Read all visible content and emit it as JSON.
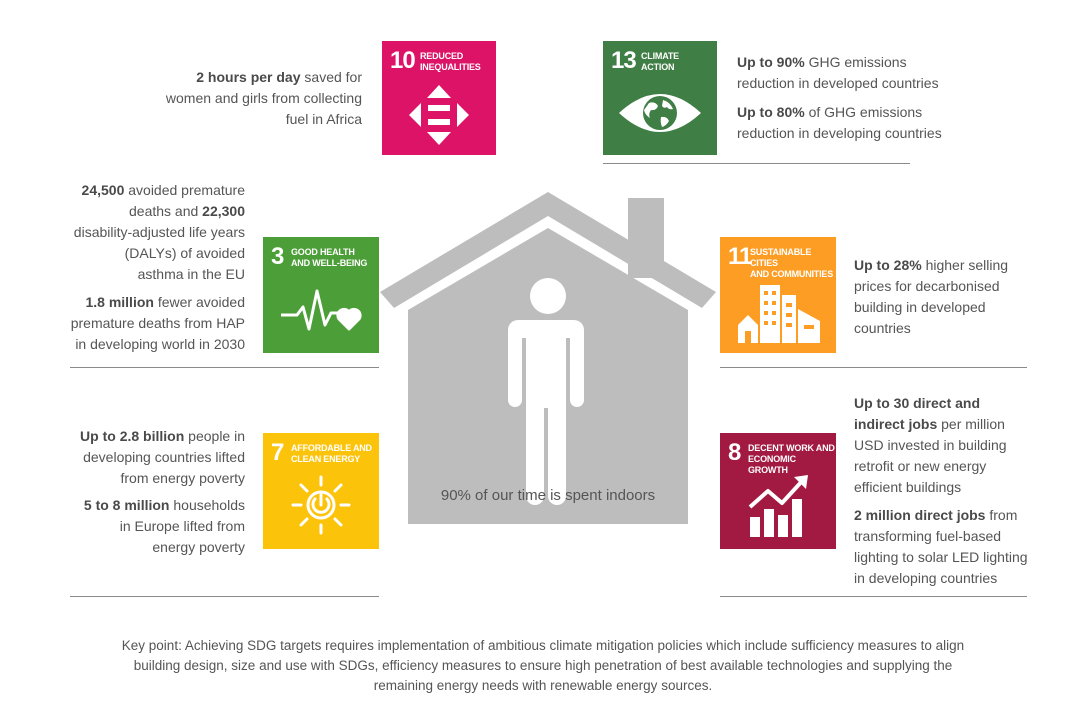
{
  "house": {
    "caption": "90% of our time is spent indoors"
  },
  "sdg10": {
    "number": "10",
    "label_lines": [
      "REDUCED",
      "INEQUALITIES"
    ],
    "color": "#dd1367",
    "icon": "inequality-arrows-icon",
    "facts": [
      {
        "bold": "2 hours per day",
        "rest_lines": [
          " saved for",
          "women and girls from collecting",
          "fuel in Africa"
        ]
      }
    ]
  },
  "sdg13": {
    "number": "13",
    "label_lines": [
      "CLIMATE",
      "ACTION"
    ],
    "color": "#3f7e44",
    "icon": "eye-globe-icon",
    "facts": [
      {
        "bold": "Up to 90%",
        "rest_lines": [
          " GHG emissions",
          "reduction in developed countries"
        ]
      },
      {
        "bold": "Up to 80%",
        "rest_lines": [
          " of GHG emissions",
          "reduction in developing countries"
        ]
      }
    ]
  },
  "sdg3": {
    "number": "3",
    "label_lines": [
      "GOOD HEALTH",
      "AND WELL-BEING"
    ],
    "color": "#4c9f38",
    "icon": "heartbeat-icon",
    "facts": [
      {
        "lines": [
          "24,500 avoided premature",
          "deaths and 22,300",
          "disability-adjusted life years",
          "(DALYs) of avoided",
          "asthma in the EU"
        ]
      },
      {
        "bold": "1.8 million",
        "rest_lines": [
          " fewer avoided",
          "premature deaths from HAP",
          "in developing world in 2030"
        ]
      }
    ]
  },
  "sdg11": {
    "number": "11",
    "label_lines": [
      "SUSTAINABLE CITIES",
      "AND COMMUNITIES"
    ],
    "color": "#fd9d24",
    "icon": "city-buildings-icon",
    "facts": [
      {
        "bold": "Up to 28%",
        "rest_lines": [
          " higher selling",
          "prices for decarbonised",
          "building in developed",
          "countries"
        ]
      }
    ]
  },
  "sdg7": {
    "number": "7",
    "label_lines": [
      "AFFORDABLE AND",
      "CLEAN ENERGY"
    ],
    "color": "#fcc30b",
    "icon": "sun-power-icon",
    "facts": [
      {
        "bold": "Up to 2.8 billion",
        "rest_lines": [
          " people in",
          "developing countries lifted",
          "from energy poverty"
        ]
      },
      {
        "bold": "5 to 8 million",
        "rest_lines": [
          " households",
          "in Europe lifted from",
          "energy poverty"
        ]
      }
    ]
  },
  "sdg8": {
    "number": "8",
    "label_lines": [
      "DECENT WORK AND",
      "ECONOMIC GROWTH"
    ],
    "color": "#a21942",
    "icon": "growth-chart-icon",
    "facts": [
      {
        "bold_lines": [
          "Up to 30 direct and",
          "indirect jobs"
        ],
        "rest_lines": [
          " per million",
          "USD invested in building",
          "retrofit or new energy",
          "efficient buildings"
        ]
      },
      {
        "bold": "2 million direct jobs",
        "rest_lines": [
          " from",
          "transforming fuel-based",
          "lighting to solar LED lighting",
          "in developing countries"
        ]
      }
    ]
  },
  "key_point": {
    "lines": [
      "Key point: Achieving SDG targets requires implementation of ambitious climate mitigation policies which include sufficiency measures to align",
      "building design, size and use with SDGs, efficiency measures to ensure high penetration of best available technologies and supplying the",
      "remaining energy needs with renewable energy sources."
    ]
  }
}
